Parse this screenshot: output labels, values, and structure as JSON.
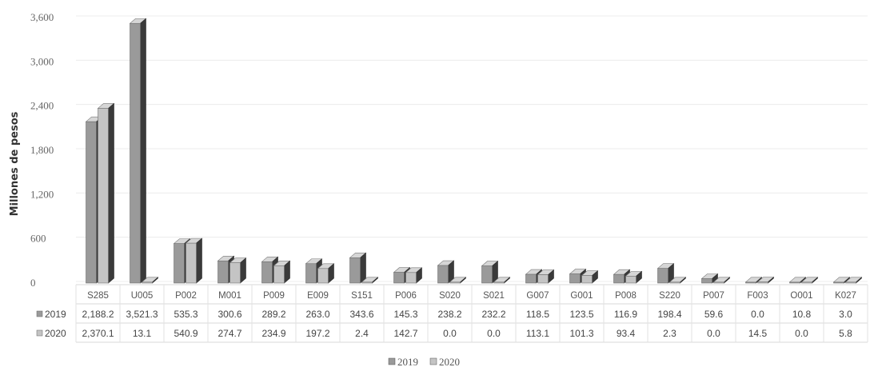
{
  "chart_data": {
    "type": "bar",
    "title": "",
    "xlabel": "",
    "ylabel": "Millones de pesos",
    "ylim": [
      0,
      3600
    ],
    "yticks": [
      "0",
      "600",
      "1,200",
      "1,800",
      "2,400",
      "3,000",
      "3,600"
    ],
    "ytick_values": [
      0,
      600,
      1200,
      1800,
      2400,
      3000,
      3600
    ],
    "categories": [
      "S285",
      "U005",
      "P002",
      "M001",
      "P009",
      "E009",
      "S151",
      "P006",
      "S020",
      "S021",
      "G007",
      "G001",
      "P008",
      "S220",
      "P007",
      "F003",
      "O001",
      "K027"
    ],
    "series": [
      {
        "name": "2019",
        "values": [
          2188.2,
          3521.3,
          535.3,
          300.6,
          289.2,
          263.0,
          343.6,
          145.3,
          238.2,
          232.2,
          118.5,
          123.5,
          116.9,
          198.4,
          59.6,
          0.0,
          10.8,
          3.0
        ],
        "labels": [
          "2,188.2",
          "3,521.3",
          "535.3",
          "300.6",
          "289.2",
          "263.0",
          "343.6",
          "145.3",
          "238.2",
          "232.2",
          "118.5",
          "123.5",
          "116.9",
          "198.4",
          "59.6",
          "0.0",
          "10.8",
          "3.0"
        ]
      },
      {
        "name": "2020",
        "values": [
          2370.1,
          13.1,
          540.9,
          274.7,
          234.9,
          197.2,
          2.4,
          142.7,
          0.0,
          0.0,
          113.1,
          101.3,
          93.4,
          2.3,
          0.0,
          14.5,
          0.0,
          5.8
        ],
        "labels": [
          "2,370.1",
          "13.1",
          "540.9",
          "274.7",
          "234.9",
          "197.2",
          "2.4",
          "142.7",
          "0.0",
          "0.0",
          "113.1",
          "101.3",
          "93.4",
          "2.3",
          "0.0",
          "14.5",
          "0.0",
          "5.8"
        ]
      }
    ],
    "grid": true,
    "legend_position": "bottom-center",
    "colors": {
      "2019": "#9a9a9a",
      "2020": "#c4c4c4",
      "dark": "#3a3a3a"
    }
  }
}
